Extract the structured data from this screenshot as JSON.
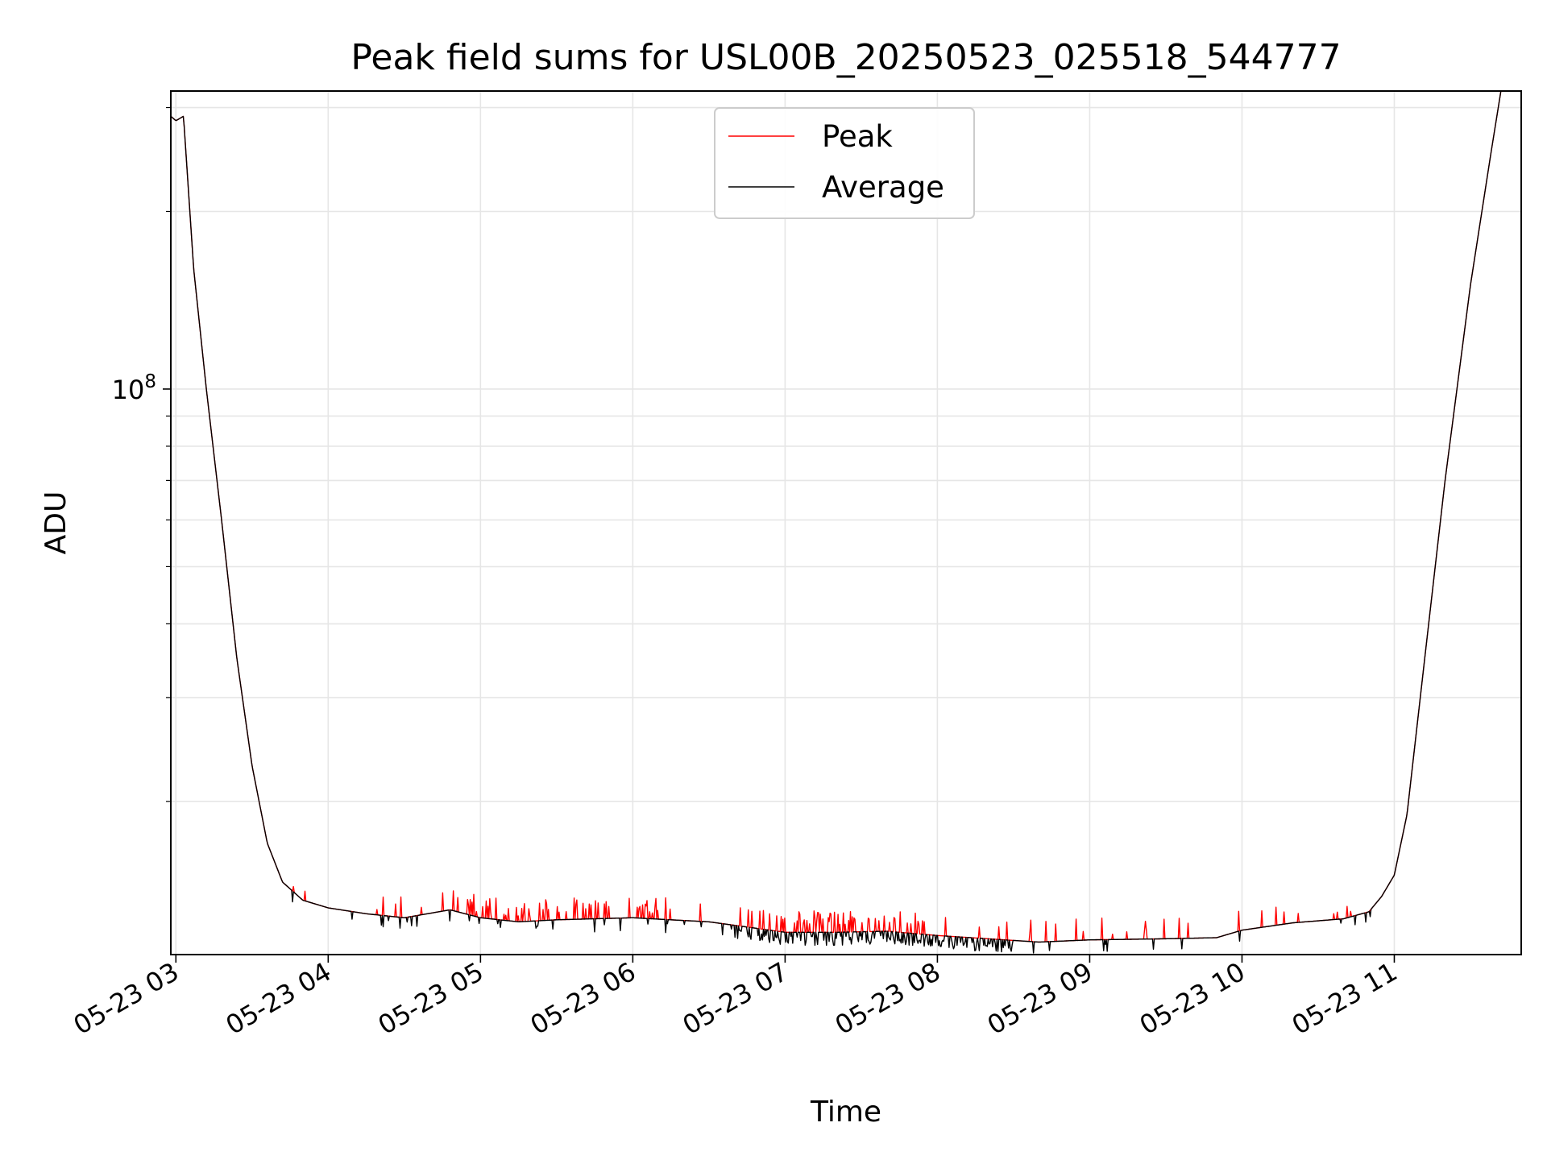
{
  "chart_data": {
    "type": "line",
    "title": "Peak field sums for USL00B_20250523_025518_544777",
    "xlabel": "Time",
    "ylabel": "ADU",
    "y_scale": "log",
    "grid": true,
    "legend_placement": "upper center",
    "xlim": [
      "2025-05-23 02:58",
      "2025-05-23 11:50"
    ],
    "ylim": [
      11000000,
      320000000
    ],
    "x_ticks": [
      "05-23 03",
      "05-23 04",
      "05-23 05",
      "05-23 06",
      "05-23 07",
      "05-23 08",
      "05-23 09",
      "05-23 10",
      "05-23 11"
    ],
    "y_ticks": [
      {
        "label_base": "10",
        "label_exp": "8",
        "value": 100000000
      }
    ],
    "series": [
      {
        "name": "Peak",
        "color": "#ff0000",
        "style": "noisy upward spikes",
        "points": [
          [
            "2025-05-23 02:58",
            290000000
          ],
          [
            "2025-05-23 03:00",
            285000000
          ],
          [
            "2025-05-23 03:03",
            290000000
          ],
          [
            "2025-05-23 03:07",
            160000000
          ],
          [
            "2025-05-23 03:12",
            100000000
          ],
          [
            "2025-05-23 03:18",
            60000000
          ],
          [
            "2025-05-23 03:24",
            35000000
          ],
          [
            "2025-05-23 03:30",
            23000000
          ],
          [
            "2025-05-23 03:36",
            17000000
          ],
          [
            "2025-05-23 03:42",
            14600000
          ],
          [
            "2025-05-23 03:50",
            13600000
          ],
          [
            "2025-05-23 04:00",
            13200000
          ],
          [
            "2025-05-23 04:15",
            12900000
          ],
          [
            "2025-05-23 04:30",
            12700000
          ],
          [
            "2025-05-23 04:48",
            13100000
          ],
          [
            "2025-05-23 05:00",
            12700000
          ],
          [
            "2025-05-23 05:15",
            12500000
          ],
          [
            "2025-05-23 05:30",
            12600000
          ],
          [
            "2025-05-23 06:00",
            12700000
          ],
          [
            "2025-05-23 06:30",
            12500000
          ],
          [
            "2025-05-23 06:45",
            12250000
          ],
          [
            "2025-05-23 07:00",
            12000000
          ],
          [
            "2025-05-23 07:20",
            12000000
          ],
          [
            "2025-05-23 07:40",
            12050000
          ],
          [
            "2025-05-23 08:00",
            11850000
          ],
          [
            "2025-05-23 08:20",
            11700000
          ],
          [
            "2025-05-23 08:40",
            11550000
          ],
          [
            "2025-05-23 09:00",
            11650000
          ],
          [
            "2025-05-23 09:30",
            11700000
          ],
          [
            "2025-05-23 09:50",
            11750000
          ],
          [
            "2025-05-23 10:00",
            12100000
          ],
          [
            "2025-05-23 10:20",
            12450000
          ],
          [
            "2025-05-23 10:40",
            12650000
          ],
          [
            "2025-05-23 10:50",
            13000000
          ],
          [
            "2025-05-23 10:55",
            13800000
          ],
          [
            "2025-05-23 11:00",
            15000000
          ],
          [
            "2025-05-23 11:05",
            19000000
          ],
          [
            "2025-05-23 11:12",
            35000000
          ],
          [
            "2025-05-23 11:20",
            70000000
          ],
          [
            "2025-05-23 11:30",
            150000000
          ],
          [
            "2025-05-23 11:38",
            250000000
          ],
          [
            "2025-05-23 11:42",
            320000000
          ]
        ]
      },
      {
        "name": "Average",
        "color": "#000000",
        "style": "noisy downward spikes",
        "points": [
          [
            "2025-05-23 02:58",
            290000000
          ],
          [
            "2025-05-23 03:00",
            285000000
          ],
          [
            "2025-05-23 03:03",
            290000000
          ],
          [
            "2025-05-23 03:07",
            160000000
          ],
          [
            "2025-05-23 03:12",
            100000000
          ],
          [
            "2025-05-23 03:18",
            60000000
          ],
          [
            "2025-05-23 03:24",
            35000000
          ],
          [
            "2025-05-23 03:30",
            23000000
          ],
          [
            "2025-05-23 03:36",
            17000000
          ],
          [
            "2025-05-23 03:42",
            14600000
          ],
          [
            "2025-05-23 03:50",
            13600000
          ],
          [
            "2025-05-23 04:00",
            13200000
          ],
          [
            "2025-05-23 04:15",
            12900000
          ],
          [
            "2025-05-23 04:30",
            12700000
          ],
          [
            "2025-05-23 04:48",
            13100000
          ],
          [
            "2025-05-23 05:00",
            12700000
          ],
          [
            "2025-05-23 05:15",
            12500000
          ],
          [
            "2025-05-23 05:30",
            12600000
          ],
          [
            "2025-05-23 06:00",
            12700000
          ],
          [
            "2025-05-23 06:30",
            12500000
          ],
          [
            "2025-05-23 06:45",
            12250000
          ],
          [
            "2025-05-23 07:00",
            12000000
          ],
          [
            "2025-05-23 07:20",
            12000000
          ],
          [
            "2025-05-23 07:40",
            12050000
          ],
          [
            "2025-05-23 08:00",
            11850000
          ],
          [
            "2025-05-23 08:20",
            11700000
          ],
          [
            "2025-05-23 08:40",
            11550000
          ],
          [
            "2025-05-23 09:00",
            11650000
          ],
          [
            "2025-05-23 09:30",
            11700000
          ],
          [
            "2025-05-23 09:50",
            11750000
          ],
          [
            "2025-05-23 10:00",
            12100000
          ],
          [
            "2025-05-23 10:20",
            12450000
          ],
          [
            "2025-05-23 10:40",
            12650000
          ],
          [
            "2025-05-23 10:50",
            13000000
          ],
          [
            "2025-05-23 10:55",
            13800000
          ],
          [
            "2025-05-23 11:00",
            15000000
          ],
          [
            "2025-05-23 11:05",
            19000000
          ],
          [
            "2025-05-23 11:12",
            35000000
          ],
          [
            "2025-05-23 11:20",
            70000000
          ],
          [
            "2025-05-23 11:30",
            150000000
          ],
          [
            "2025-05-23 11:38",
            250000000
          ],
          [
            "2025-05-23 11:42",
            320000000
          ]
        ]
      }
    ]
  }
}
